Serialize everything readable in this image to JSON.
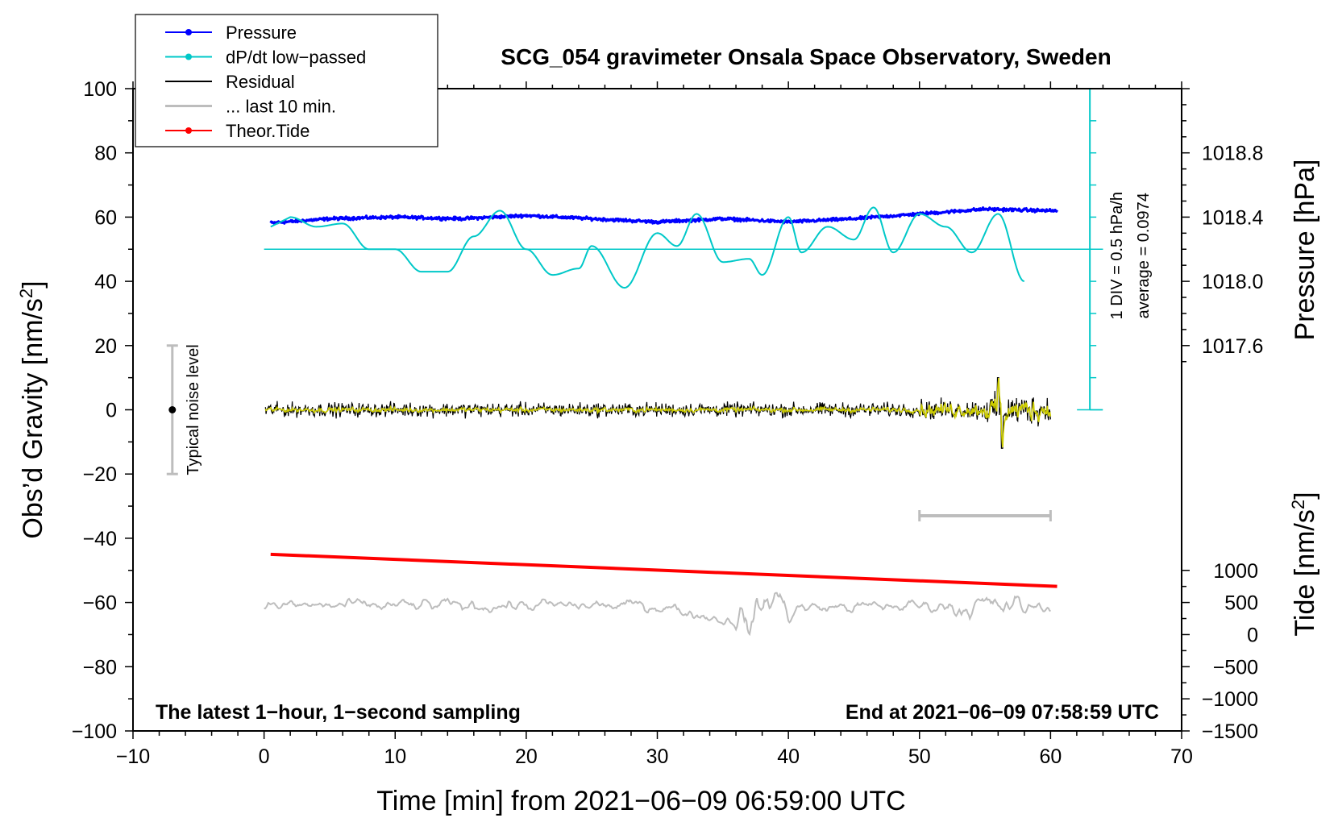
{
  "chart_data": {
    "type": "line",
    "title": "SCG_054 gravimeter Onsala Space Observatory, Sweden",
    "xlabel": "Time [min] from 2021−06−09 06:59:00 UTC",
    "ylabel": "Obs’d Gravity [nm/s2]",
    "ylabel_right_top": "Pressure [hPa]",
    "ylabel_right_bottom": "Tide [nm/s2]",
    "xlim": [
      -10,
      70
    ],
    "ylim": [
      -100,
      100
    ],
    "xticks": [
      "−10",
      "0",
      "10",
      "20",
      "30",
      "40",
      "50",
      "60",
      "70"
    ],
    "yticks": [
      "100",
      "80",
      "60",
      "40",
      "20",
      "0",
      "−20",
      "−40",
      "−60",
      "−80",
      "−100"
    ],
    "pressure_axis": {
      "ticks": [
        "1018.8",
        "1018.4",
        "1018.0",
        "1017.6"
      ],
      "values": [
        1018.8,
        1018.4,
        1018.0,
        1017.6
      ],
      "gravity_equiv": [
        80,
        60,
        40,
        20
      ]
    },
    "tide_axis": {
      "ticks": [
        "1000",
        "500",
        "0",
        "−500",
        "−1000",
        "−1500"
      ],
      "values": [
        1000,
        500,
        0,
        -500,
        -1000,
        -1500
      ]
    },
    "legend": [
      {
        "label": "Pressure",
        "color": "#0000ff",
        "marker": true
      },
      {
        "label": "dP/dt low−passed",
        "color": "#00c8c8",
        "marker": true
      },
      {
        "label": "Residual",
        "color": "#000000",
        "marker": false
      },
      {
        "label": "... last 10 min.",
        "color": "#bdbdbd",
        "marker": false
      },
      {
        "label": "Theor.Tide",
        "color": "#ff0000",
        "marker": true
      }
    ],
    "series": [
      {
        "name": "Pressure",
        "color": "#0000ff",
        "x": [
          0,
          5,
          10,
          15,
          20,
          25,
          30,
          35,
          40,
          45,
          50,
          55,
          60
        ],
        "y": [
          58,
          59.5,
          60,
          59.5,
          60.5,
          59.5,
          58.5,
          59.5,
          58.5,
          59.5,
          61,
          62.5,
          62
        ]
      },
      {
        "name": "dP/dt low−passed",
        "color": "#00c8c8",
        "x": [
          2,
          4,
          6,
          8,
          10,
          12,
          14,
          16,
          18,
          20,
          22,
          24,
          25,
          27.5,
          30,
          31.5,
          33,
          35,
          37,
          38,
          40,
          41,
          43,
          45,
          46.5,
          48,
          50,
          52,
          54,
          56,
          58
        ],
        "y": [
          60,
          57,
          58,
          50,
          50,
          43,
          43,
          54,
          62,
          50,
          42,
          44,
          51,
          38,
          55,
          51,
          61,
          46,
          47,
          42,
          60,
          49,
          57,
          53,
          63,
          49,
          61,
          57,
          49,
          61,
          40
        ]
      },
      {
        "name": "Residual",
        "color": "#000000",
        "x": [
          0,
          10,
          20,
          30,
          40,
          50,
          55,
          56.3,
          57,
          60
        ],
        "y": [
          0,
          0,
          0,
          0,
          0,
          0,
          0,
          0,
          0,
          0
        ]
      },
      {
        "name": "... last 10 min.",
        "color": "#bdbdbd",
        "x": [
          0,
          10,
          20,
          30,
          37,
          38.7,
          40,
          50,
          60
        ],
        "y": [
          -61,
          -61,
          -61,
          -61,
          -76,
          -53,
          -63,
          -61,
          -62
        ]
      },
      {
        "name": "Theor.Tide",
        "color": "#ff0000",
        "x": [
          0.5,
          60.5
        ],
        "y": [
          -45,
          -55
        ]
      }
    ],
    "pressure_baseline": {
      "value": 50,
      "color": "#00c8c8"
    },
    "dpdt_scale": {
      "label": "1 DIV = 0.5 hPa/h",
      "average_label": "average = 0.0974",
      "x": 63,
      "y_range": [
        0,
        100
      ]
    },
    "noise_bar": {
      "label": "Typical noise level",
      "x": -7,
      "y": 0,
      "y_range": [
        -20,
        20
      ]
    },
    "last10_bar": {
      "x_range": [
        50,
        60
      ],
      "y": -33
    },
    "annotation_left": "The latest 1−hour, 1−second sampling",
    "annotation_right": "End at 2021−06−09 07:58:59 UTC"
  }
}
